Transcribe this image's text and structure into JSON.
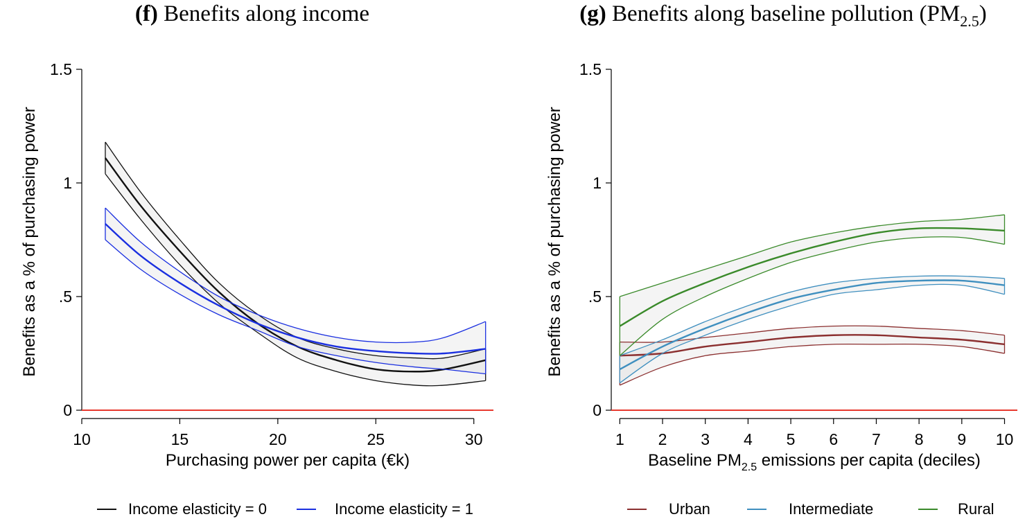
{
  "panels": [
    {
      "title_letter": "(f)",
      "title_text": "Benefits along income",
      "title_sub": ""
    },
    {
      "title_letter": "(g)",
      "title_text": "Benefits along baseline pollution (PM",
      "title_sub": "2.5",
      "title_end": ")"
    }
  ],
  "chart_data": [
    {
      "type": "line",
      "title": "(f) Benefits along income",
      "xlabel": "Purchasing power per capita (€k)",
      "ylabel": "Benefits as a % of purchasing power",
      "xlim": [
        10,
        31
      ],
      "ylim": [
        0,
        1.5
      ],
      "xticks": [
        10,
        15,
        20,
        25,
        30
      ],
      "yticks": [
        0,
        0.5,
        1,
        1.5
      ],
      "yticklabels": [
        "0",
        ".5",
        "1",
        "1.5"
      ],
      "reference_line": {
        "y": 0,
        "color": "#e8392e"
      },
      "legend_position": "bottom",
      "series": [
        {
          "name": "Income elasticity = 0",
          "color": "#111111",
          "x": [
            11.2,
            13,
            15,
            17,
            19,
            21,
            23,
            25,
            27,
            28.5,
            30.6
          ],
          "y": [
            1.11,
            0.9,
            0.7,
            0.52,
            0.38,
            0.28,
            0.22,
            0.18,
            0.17,
            0.18,
            0.22
          ],
          "upper": [
            1.18,
            0.96,
            0.75,
            0.56,
            0.42,
            0.32,
            0.27,
            0.24,
            0.23,
            0.23,
            0.27
          ],
          "lower": [
            1.04,
            0.84,
            0.64,
            0.47,
            0.34,
            0.23,
            0.17,
            0.13,
            0.11,
            0.11,
            0.13
          ]
        },
        {
          "name": "Income elasticity = 1",
          "color": "#1a2fe0",
          "x": [
            11.2,
            13,
            15,
            17,
            19,
            21,
            23,
            25,
            27,
            28.5,
            30.6
          ],
          "y": [
            0.82,
            0.68,
            0.56,
            0.46,
            0.38,
            0.32,
            0.28,
            0.26,
            0.25,
            0.25,
            0.27
          ],
          "upper": [
            0.89,
            0.74,
            0.61,
            0.5,
            0.42,
            0.36,
            0.32,
            0.3,
            0.3,
            0.32,
            0.39
          ],
          "lower": [
            0.75,
            0.62,
            0.51,
            0.42,
            0.35,
            0.28,
            0.24,
            0.21,
            0.19,
            0.18,
            0.16
          ]
        }
      ]
    },
    {
      "type": "line",
      "title": "(g) Benefits along baseline pollution (PM2.5)",
      "xlabel": "Baseline PM2.5 emissions per capita (deciles)",
      "ylabel": "Benefits as a % of purchasing power",
      "xlim": [
        0.8,
        10.3
      ],
      "ylim": [
        0,
        1.5
      ],
      "xticks": [
        1,
        2,
        3,
        4,
        5,
        6,
        7,
        8,
        9,
        10
      ],
      "yticks": [
        0,
        0.5,
        1,
        1.5
      ],
      "yticklabels": [
        "0",
        ".5",
        "1",
        "1.5"
      ],
      "reference_line": {
        "y": 0,
        "color": "#e8392e"
      },
      "legend_position": "bottom",
      "series": [
        {
          "name": "Urban",
          "color": "#8b2f2f",
          "x": [
            1,
            2,
            3,
            4,
            5,
            6,
            7,
            8,
            9,
            10
          ],
          "y": [
            0.24,
            0.25,
            0.28,
            0.3,
            0.32,
            0.33,
            0.33,
            0.32,
            0.31,
            0.29
          ],
          "upper": [
            0.3,
            0.3,
            0.32,
            0.34,
            0.36,
            0.37,
            0.37,
            0.36,
            0.35,
            0.33
          ],
          "lower": [
            0.11,
            0.19,
            0.24,
            0.26,
            0.28,
            0.29,
            0.29,
            0.29,
            0.28,
            0.25
          ]
        },
        {
          "name": "Intermediate",
          "color": "#3f8fbf",
          "x": [
            1,
            2,
            3,
            4,
            5,
            6,
            7,
            8,
            9,
            10
          ],
          "y": [
            0.18,
            0.28,
            0.36,
            0.43,
            0.49,
            0.53,
            0.56,
            0.57,
            0.57,
            0.55
          ],
          "upper": [
            0.24,
            0.31,
            0.39,
            0.46,
            0.52,
            0.56,
            0.58,
            0.59,
            0.59,
            0.58
          ],
          "lower": [
            0.12,
            0.25,
            0.33,
            0.4,
            0.46,
            0.51,
            0.53,
            0.55,
            0.55,
            0.51
          ]
        },
        {
          "name": "Rural",
          "color": "#3a8a2a",
          "x": [
            1,
            2,
            3,
            4,
            5,
            6,
            7,
            8,
            9,
            10
          ],
          "y": [
            0.37,
            0.48,
            0.56,
            0.63,
            0.69,
            0.74,
            0.78,
            0.8,
            0.8,
            0.79
          ],
          "upper": [
            0.5,
            0.56,
            0.62,
            0.68,
            0.74,
            0.78,
            0.81,
            0.83,
            0.84,
            0.86
          ],
          "lower": [
            0.24,
            0.4,
            0.5,
            0.58,
            0.65,
            0.7,
            0.74,
            0.76,
            0.76,
            0.73
          ]
        }
      ]
    }
  ]
}
